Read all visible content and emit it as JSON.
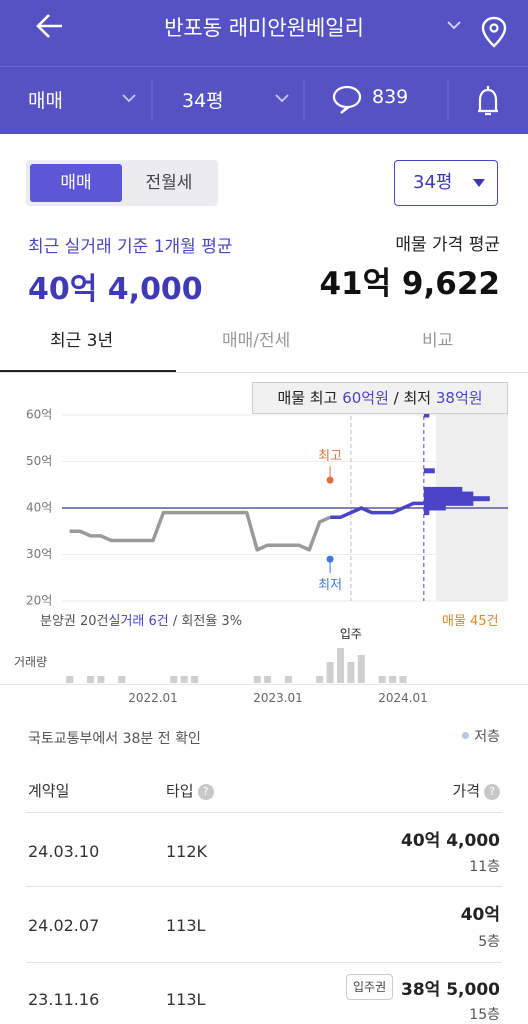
{
  "header": {
    "title": "반포동 래미안원베일리"
  },
  "filters": {
    "trade": "매매",
    "size": "34평",
    "comments": "839"
  },
  "toggle": {
    "sale": "매매",
    "rent": "전월세",
    "size_select": "34평"
  },
  "summary": {
    "recent_label": "최근 실거래 기준 1개월 평균",
    "recent_price": "40억 4,000",
    "listing_label": "매물 가격 평균",
    "listing_price": "41억 9,622"
  },
  "period_tabs": [
    "최근 3년",
    "매매/전세",
    "비교"
  ],
  "chart_data": {
    "type": "line",
    "tooltip": {
      "prefix": "매물 최고",
      "max": "60억원",
      "sep": "/ 최저",
      "min": "38억원"
    },
    "x": [
      "2021.05",
      "2021.06",
      "2021.07",
      "2021.08",
      "2021.09",
      "2021.10",
      "2021.11",
      "2021.12",
      "2022.01",
      "2022.02",
      "2022.03",
      "2022.04",
      "2022.05",
      "2022.06",
      "2022.07",
      "2022.08",
      "2022.09",
      "2022.10",
      "2022.11",
      "2022.12",
      "2023.01",
      "2023.02",
      "2023.03",
      "2023.04",
      "2023.05",
      "2023.06",
      "2023.07",
      "2023.08",
      "2023.09",
      "2023.10",
      "2023.11",
      "2023.12",
      "2024.01",
      "2024.02",
      "2024.03"
    ],
    "series": [
      {
        "color": "#9a9a9a",
        "values": [
          35,
          35,
          34,
          34,
          33,
          33,
          33,
          33,
          33,
          39,
          39,
          39,
          39,
          39,
          39,
          39,
          39,
          39,
          31,
          32,
          32,
          32,
          32,
          31,
          37,
          38,
          null,
          null,
          null,
          null,
          null,
          null,
          null,
          null,
          null
        ]
      },
      {
        "color": "#4a45c8",
        "values": [
          null,
          null,
          null,
          null,
          null,
          null,
          null,
          null,
          null,
          null,
          null,
          null,
          null,
          null,
          null,
          null,
          null,
          null,
          null,
          null,
          null,
          null,
          null,
          null,
          null,
          38,
          38,
          39,
          40,
          39,
          39,
          39,
          40,
          41,
          41
        ]
      }
    ],
    "average": {
      "value": 40,
      "color": "#3b3a8a"
    },
    "high": {
      "x": "2023.06",
      "value": 46,
      "label": "최고",
      "color": "#e0703a"
    },
    "low": {
      "x": "2023.06",
      "value": 29,
      "label": "최저",
      "color": "#3a7bd5"
    },
    "move_in": {
      "x": "2023.08",
      "label": "입주"
    },
    "now_x": "2024.03",
    "ylim": [
      20,
      60
    ],
    "yticks": [
      {
        "value": 20,
        "label": "20억"
      },
      {
        "value": 30,
        "label": "30억"
      },
      {
        "value": 40,
        "label": "40억"
      },
      {
        "value": 50,
        "label": "50억"
      },
      {
        "value": 60,
        "label": "60억"
      }
    ],
    "xticks": [
      "2022.01",
      "2023.01",
      "2024.01"
    ],
    "grid": true,
    "listings": {
      "color": "#4a45c8",
      "prices": [
        60,
        48,
        44,
        43,
        42,
        41,
        40,
        39
      ],
      "counts": [
        1,
        2,
        7,
        9,
        12,
        9,
        4,
        1
      ],
      "label": "매물 45건",
      "label_color": "#e08a2a"
    },
    "footer": {
      "presale": "분양권 20건",
      "deals": "실거래 6건",
      "turnover": "/ 회전율 3%"
    },
    "volume": {
      "label": "거래량",
      "color": "#cfcfcf",
      "values": [
        1,
        null,
        1,
        1,
        null,
        1,
        null,
        null,
        null,
        null,
        1,
        1,
        1,
        null,
        null,
        null,
        null,
        null,
        1,
        1,
        null,
        1,
        null,
        null,
        1,
        3,
        5,
        3,
        4,
        null,
        1,
        1,
        1,
        null,
        null
      ]
    }
  },
  "source": {
    "text": "국토교통부에서 38분 전 확인",
    "legend": "저층"
  },
  "table": {
    "headers": [
      "계약일",
      "타입",
      "가격"
    ],
    "rows": [
      [
        "24.03.10",
        "112K",
        "40억 4,000",
        "11층"
      ],
      [
        "24.02.07",
        "113L",
        "40억",
        "5층"
      ],
      [
        "23.11.16",
        "113L",
        "38억 5,000",
        "15층"
      ]
    ],
    "badge": "입주권"
  }
}
